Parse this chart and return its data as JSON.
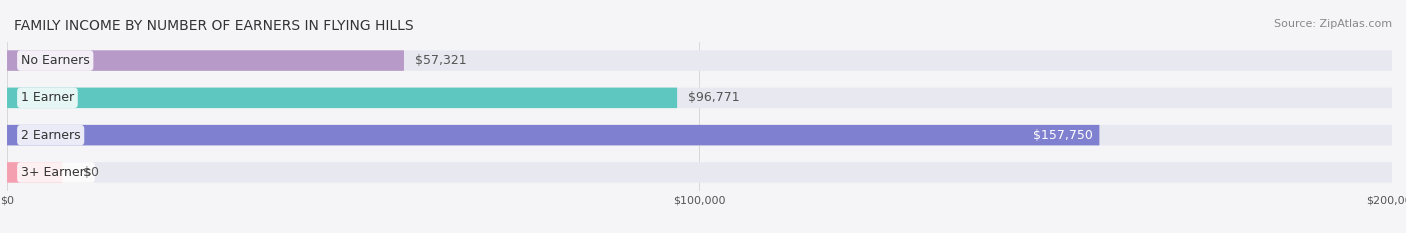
{
  "title": "FAMILY INCOME BY NUMBER OF EARNERS IN FLYING HILLS",
  "source": "Source: ZipAtlas.com",
  "categories": [
    "No Earners",
    "1 Earner",
    "2 Earners",
    "3+ Earners"
  ],
  "values": [
    57321,
    96771,
    157750,
    0
  ],
  "bar_colors": [
    "#b89ac8",
    "#5ec8c0",
    "#8080d0",
    "#f4a0b0"
  ],
  "label_colors": [
    "#555555",
    "#555555",
    "#ffffff",
    "#555555"
  ],
  "bar_bg_color": "#e8e8f0",
  "background_color": "#f5f5f8",
  "xmax": 200000,
  "title_fontsize": 10,
  "source_fontsize": 8,
  "label_fontsize": 9,
  "value_fontsize": 9
}
